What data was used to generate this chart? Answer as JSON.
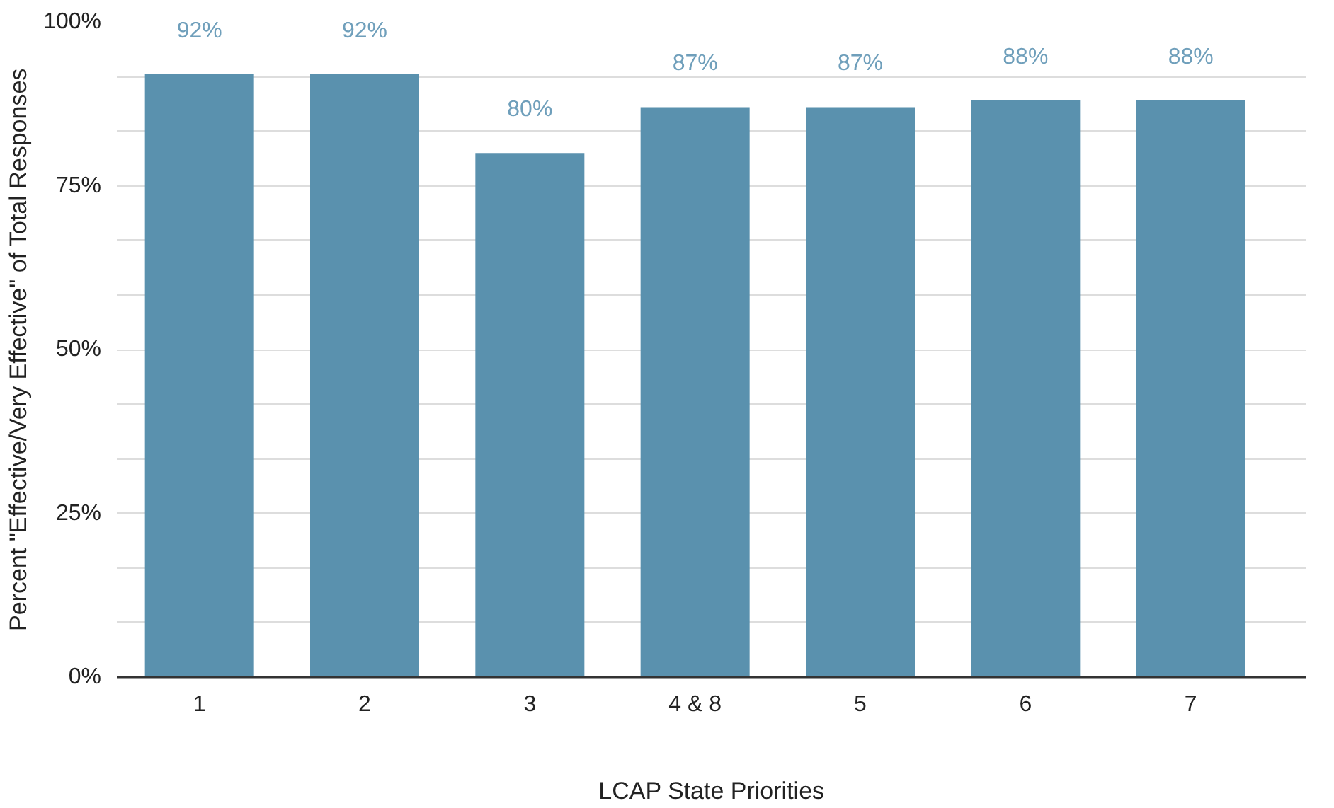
{
  "chart_data": {
    "type": "bar",
    "xlabel": "LCAP State Priorities",
    "ylabel": "Percent \"Effective/Very Effective\" of Total Responses",
    "categories": [
      "1",
      "2",
      "3",
      "4 & 8",
      "5",
      "6",
      "7"
    ],
    "values": [
      92,
      92,
      80,
      87,
      87,
      88,
      88
    ],
    "value_labels": [
      "92%",
      "92%",
      "80%",
      "87%",
      "87%",
      "88%",
      "88%"
    ],
    "color": "#5a91ae",
    "ylim": [
      0,
      100
    ],
    "yticks": [
      {
        "value": 0,
        "label": "0%"
      },
      {
        "value": 8.33,
        "label": null
      },
      {
        "value": 16.67,
        "label": null
      },
      {
        "value": 25,
        "label": "25%"
      },
      {
        "value": 33.33,
        "label": null
      },
      {
        "value": 41.67,
        "label": null
      },
      {
        "value": 50,
        "label": "50%"
      },
      {
        "value": 58.33,
        "label": null
      },
      {
        "value": 66.67,
        "label": null
      },
      {
        "value": 75,
        "label": "75%"
      },
      {
        "value": 83.33,
        "label": null
      },
      {
        "value": 91.67,
        "label": null
      },
      {
        "value": 100,
        "label": "100%"
      }
    ],
    "grid": "y"
  }
}
